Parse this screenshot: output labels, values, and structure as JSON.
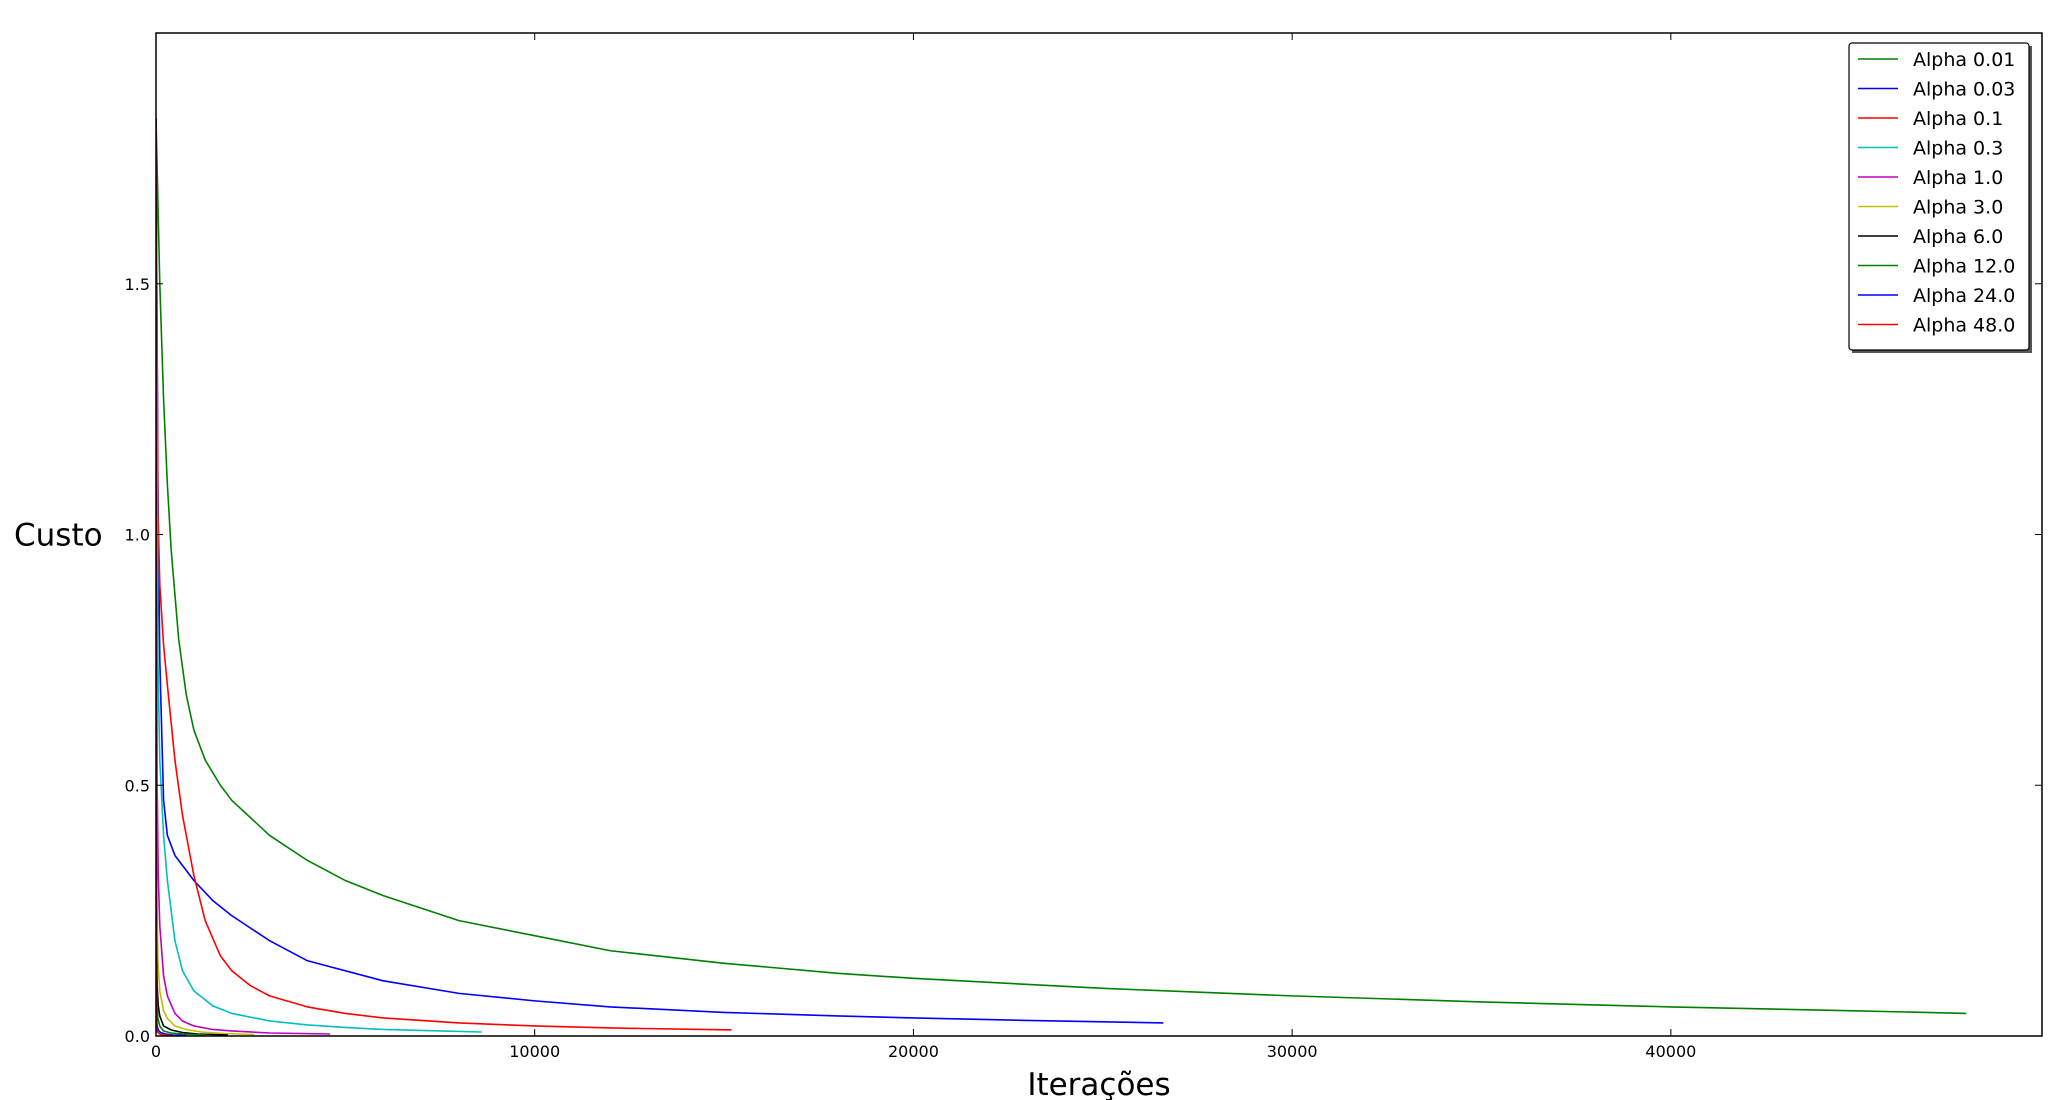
{
  "chart_data": {
    "type": "line",
    "title": "",
    "xlabel": "Iterações",
    "ylabel": "Custo",
    "xlim": [
      0,
      49800
    ],
    "ylim": [
      0,
      2.0
    ],
    "xticks": [
      0,
      10000,
      20000,
      30000,
      40000
    ],
    "xtick_labels": [
      "0",
      "10000",
      "20000",
      "30000",
      "40000"
    ],
    "yticks": [
      0.0,
      0.5,
      1.0,
      1.5
    ],
    "ytick_labels": [
      "0.0",
      "0.5",
      "1.0",
      "1.5"
    ],
    "grid": false,
    "legend_position": "top-right",
    "series": [
      {
        "name": "Alpha 0.01",
        "color": "#008000",
        "x": [
          0,
          100,
          200,
          300,
          400,
          600,
          800,
          1000,
          1300,
          1700,
          2000,
          3000,
          4000,
          5000,
          6000,
          8000,
          10000,
          12000,
          15000,
          18000,
          20000,
          25000,
          30000,
          35000,
          40000,
          45000,
          47800
        ],
        "y": [
          1.83,
          1.5,
          1.27,
          1.1,
          0.97,
          0.79,
          0.68,
          0.61,
          0.55,
          0.5,
          0.47,
          0.4,
          0.35,
          0.31,
          0.28,
          0.23,
          0.2,
          0.17,
          0.145,
          0.125,
          0.115,
          0.095,
          0.08,
          0.068,
          0.058,
          0.05,
          0.045
        ]
      },
      {
        "name": "Alpha 0.03",
        "color": "#0000ff",
        "x": [
          0,
          50,
          100,
          200,
          300,
          500,
          800,
          1000,
          1500,
          2000,
          3000,
          4000,
          6000,
          8000,
          10000,
          12000,
          15000,
          18000,
          20000,
          23000,
          26600
        ],
        "y": [
          1.83,
          1.1,
          0.75,
          0.47,
          0.4,
          0.36,
          0.33,
          0.31,
          0.27,
          0.24,
          0.19,
          0.15,
          0.11,
          0.085,
          0.07,
          0.058,
          0.047,
          0.04,
          0.036,
          0.031,
          0.026
        ]
      },
      {
        "name": "Alpha 0.1",
        "color": "#ff0000",
        "x": [
          0,
          50,
          100,
          200,
          300,
          500,
          700,
          1000,
          1300,
          1700,
          2000,
          2500,
          3000,
          4000,
          5000,
          6000,
          8000,
          10000,
          12000,
          15200
        ],
        "y": [
          1.83,
          1.05,
          0.9,
          0.78,
          0.7,
          0.55,
          0.44,
          0.32,
          0.23,
          0.16,
          0.13,
          0.1,
          0.08,
          0.058,
          0.045,
          0.036,
          0.026,
          0.02,
          0.016,
          0.012
        ]
      },
      {
        "name": "Alpha 0.3",
        "color": "#00bfbf",
        "x": [
          0,
          50,
          100,
          200,
          300,
          500,
          700,
          1000,
          1500,
          2000,
          3000,
          4000,
          5000,
          6000,
          7000,
          8600
        ],
        "y": [
          1.83,
          0.75,
          0.55,
          0.4,
          0.31,
          0.19,
          0.13,
          0.09,
          0.06,
          0.045,
          0.03,
          0.022,
          0.017,
          0.013,
          0.011,
          0.008
        ]
      },
      {
        "name": "Alpha 1.0",
        "color": "#bf00bf",
        "x": [
          0,
          30,
          60,
          100,
          200,
          300,
          500,
          700,
          1000,
          1500,
          2000,
          3000,
          4600
        ],
        "y": [
          1.83,
          0.5,
          0.32,
          0.22,
          0.12,
          0.08,
          0.045,
          0.03,
          0.02,
          0.013,
          0.01,
          0.006,
          0.004
        ]
      },
      {
        "name": "Alpha 3.0",
        "color": "#bfbf00",
        "x": [
          0,
          20,
          50,
          100,
          200,
          300,
          500,
          800,
          1200,
          1800,
          2600
        ],
        "y": [
          1.83,
          0.3,
          0.15,
          0.09,
          0.05,
          0.035,
          0.02,
          0.013,
          0.008,
          0.005,
          0.003
        ]
      },
      {
        "name": "Alpha 6.0",
        "color": "#000000",
        "x": [
          0,
          10,
          30,
          60,
          100,
          200,
          400,
          700,
          1100,
          1900
        ],
        "y": [
          1.83,
          0.2,
          0.1,
          0.06,
          0.04,
          0.02,
          0.012,
          0.007,
          0.004,
          0.002
        ]
      },
      {
        "name": "Alpha 12.0",
        "color": "#008000",
        "x": [
          0,
          10,
          20,
          50,
          100,
          200,
          400,
          700,
          1300
        ],
        "y": [
          1.83,
          0.12,
          0.07,
          0.035,
          0.02,
          0.01,
          0.006,
          0.004,
          0.002
        ]
      },
      {
        "name": "Alpha 24.0",
        "color": "#0000ff",
        "x": [
          0,
          5,
          10,
          30,
          60,
          120,
          250,
          450,
          800
        ],
        "y": [
          1.83,
          0.08,
          0.04,
          0.02,
          0.012,
          0.007,
          0.004,
          0.002,
          0.001
        ]
      },
      {
        "name": "Alpha 48.0",
        "color": "#ff0000",
        "x": [
          0,
          3,
          8,
          20,
          50,
          100,
          200,
          400
        ],
        "y": [
          1.83,
          0.05,
          0.025,
          0.012,
          0.007,
          0.004,
          0.002,
          0.001
        ]
      }
    ]
  }
}
